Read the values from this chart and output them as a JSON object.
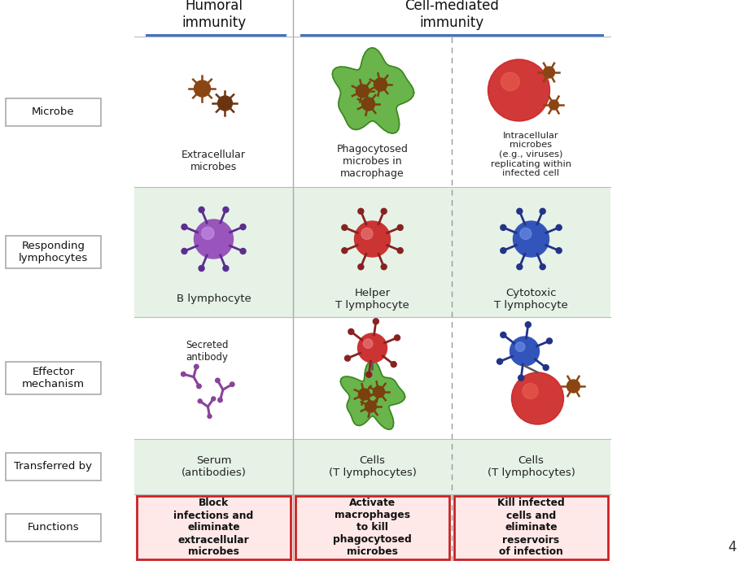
{
  "bg_color": "#ffffff",
  "header_humoral": "Humoral\nimmunity",
  "header_cell": "Cell-mediated\nimmunity",
  "header_color": "#4472c4",
  "col1_microbe_text": "Extracellular\nmicrobes",
  "col2_microbe_text": "Phagocytosed\nmicrobes in\nmacrophage",
  "col3_microbe_text": "Intracellular\nmicrobes\n(e.g., viruses)\nreplicating within\ninfected cell",
  "col1_lymph_text": "B lymphocyte",
  "col2_lymph_text": "Helper\nT lymphocyte",
  "col3_lymph_text": "Cytotoxic\nT lymphocyte",
  "col1_transfer_text": "Serum\n(antibodies)",
  "col2_transfer_text": "Cells\n(T lymphocytes)",
  "col3_transfer_text": "Cells\n(T lymphocytes)",
  "col1_effector_text": "Secreted\nantibody",
  "col1_func_text": "Block\ninfections and\neliminate\nextracellular\nmicrobes",
  "col2_func_text": "Activate\nmacrophages\nto kill\nphagocytosed\nmicrobes",
  "col3_func_text": "Kill infected\ncells and\neliminate\nreservoirs\nof infection",
  "lymph_bg_color": "#e6f2e6",
  "transfer_bg_color": "#e6f2e6",
  "func_bg_color": "#ffe8e8",
  "func_border_color": "#cc2222",
  "page_num": "4"
}
